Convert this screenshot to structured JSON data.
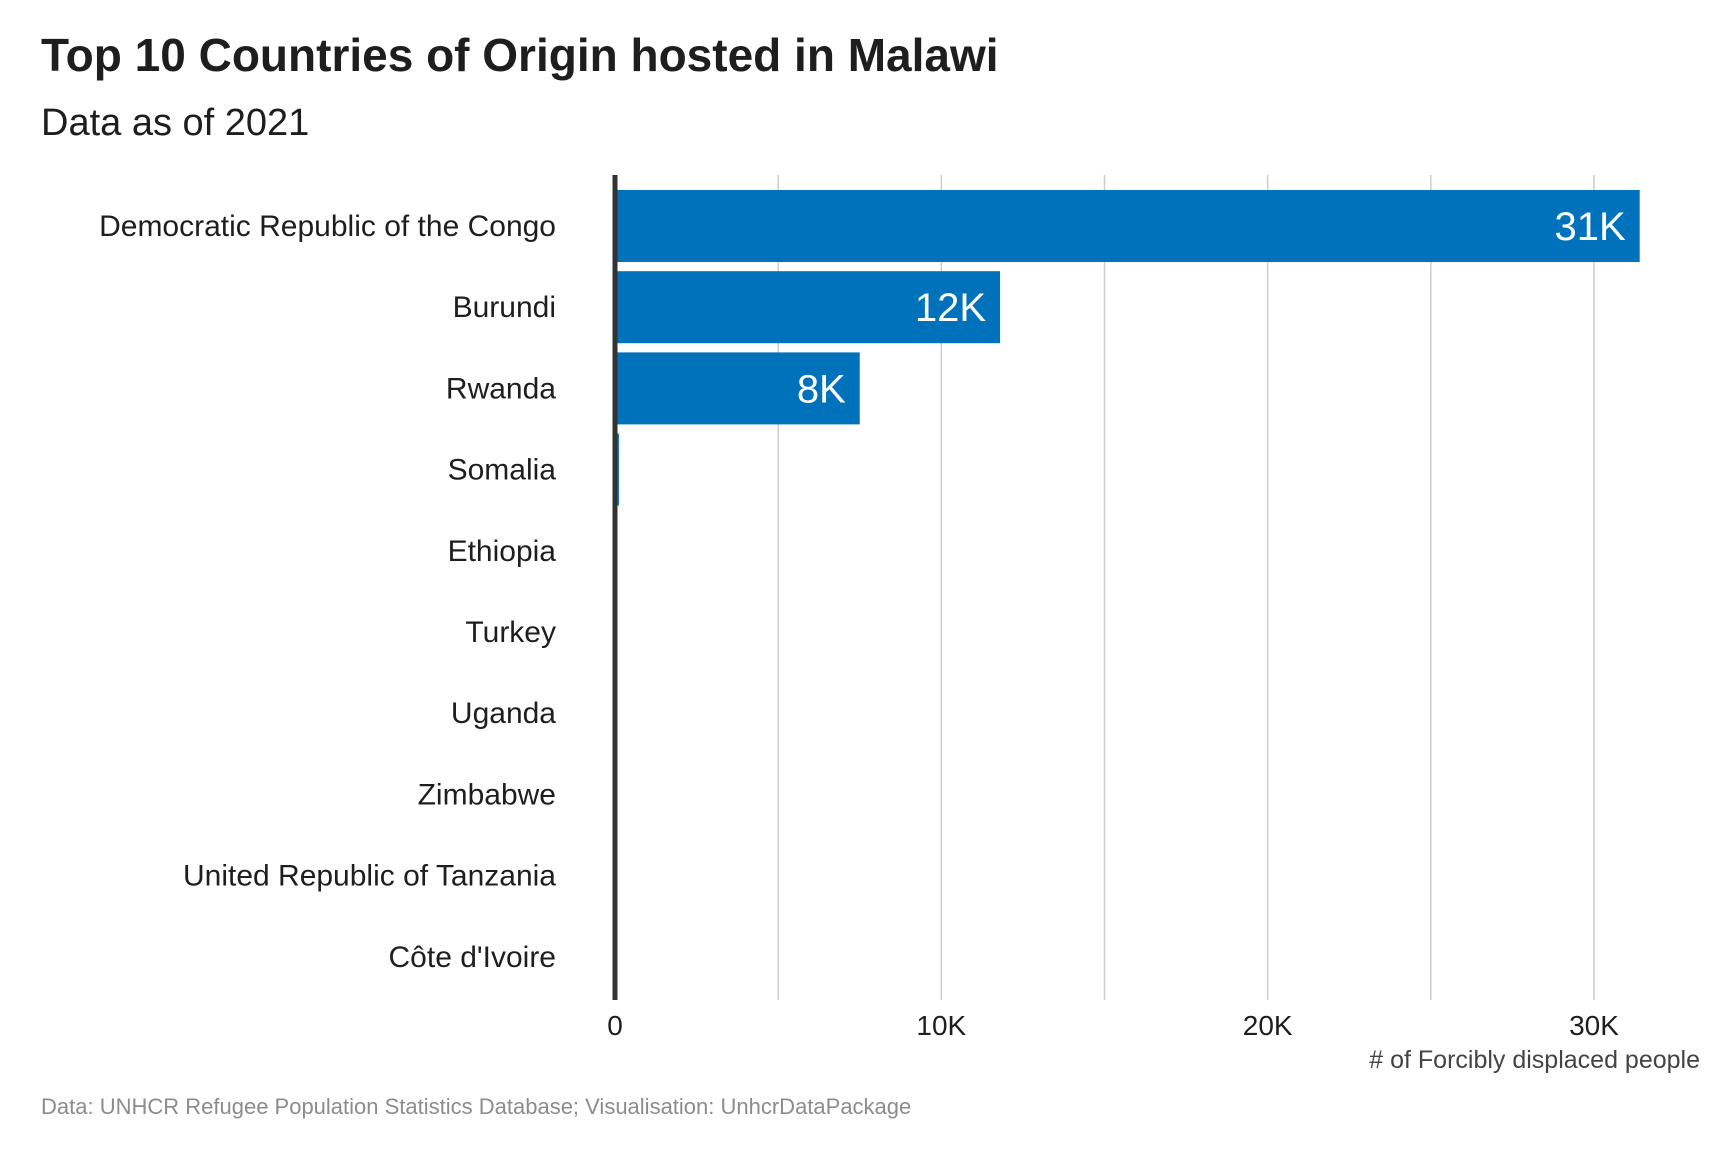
{
  "title": "Top 10 Countries of Origin hosted in Malawi",
  "subtitle": "Data as of 2021",
  "caption": "Data: UNHCR Refugee Population Statistics Database; Visualisation: UnhcrDataPackage",
  "colors": {
    "bar": "#0072bc",
    "grid": "#cccccc",
    "axis": "#333333"
  },
  "chart_data": {
    "type": "bar",
    "orientation": "horizontal",
    "categories": [
      "Democratic Republic of the Congo",
      "Burundi",
      "Rwanda",
      "Somalia",
      "Ethiopia",
      "Turkey",
      "Uganda",
      "Zimbabwe",
      "United Republic of Tanzania",
      "Côte d'Ivoire"
    ],
    "values": [
      31400,
      11800,
      7500,
      120,
      30,
      10,
      8,
      6,
      5,
      4
    ],
    "data_labels": [
      "31K",
      "12K",
      "8K",
      "",
      "",
      "",
      "",
      "",
      "",
      ""
    ],
    "xlabel": "# of Forcibly displaced people",
    "ylabel": "",
    "xlim": [
      0,
      32500
    ],
    "x_ticks": [
      0,
      10000,
      20000,
      30000
    ],
    "x_tick_labels": [
      "0",
      "10K",
      "20K",
      "30K"
    ],
    "grid": true
  }
}
